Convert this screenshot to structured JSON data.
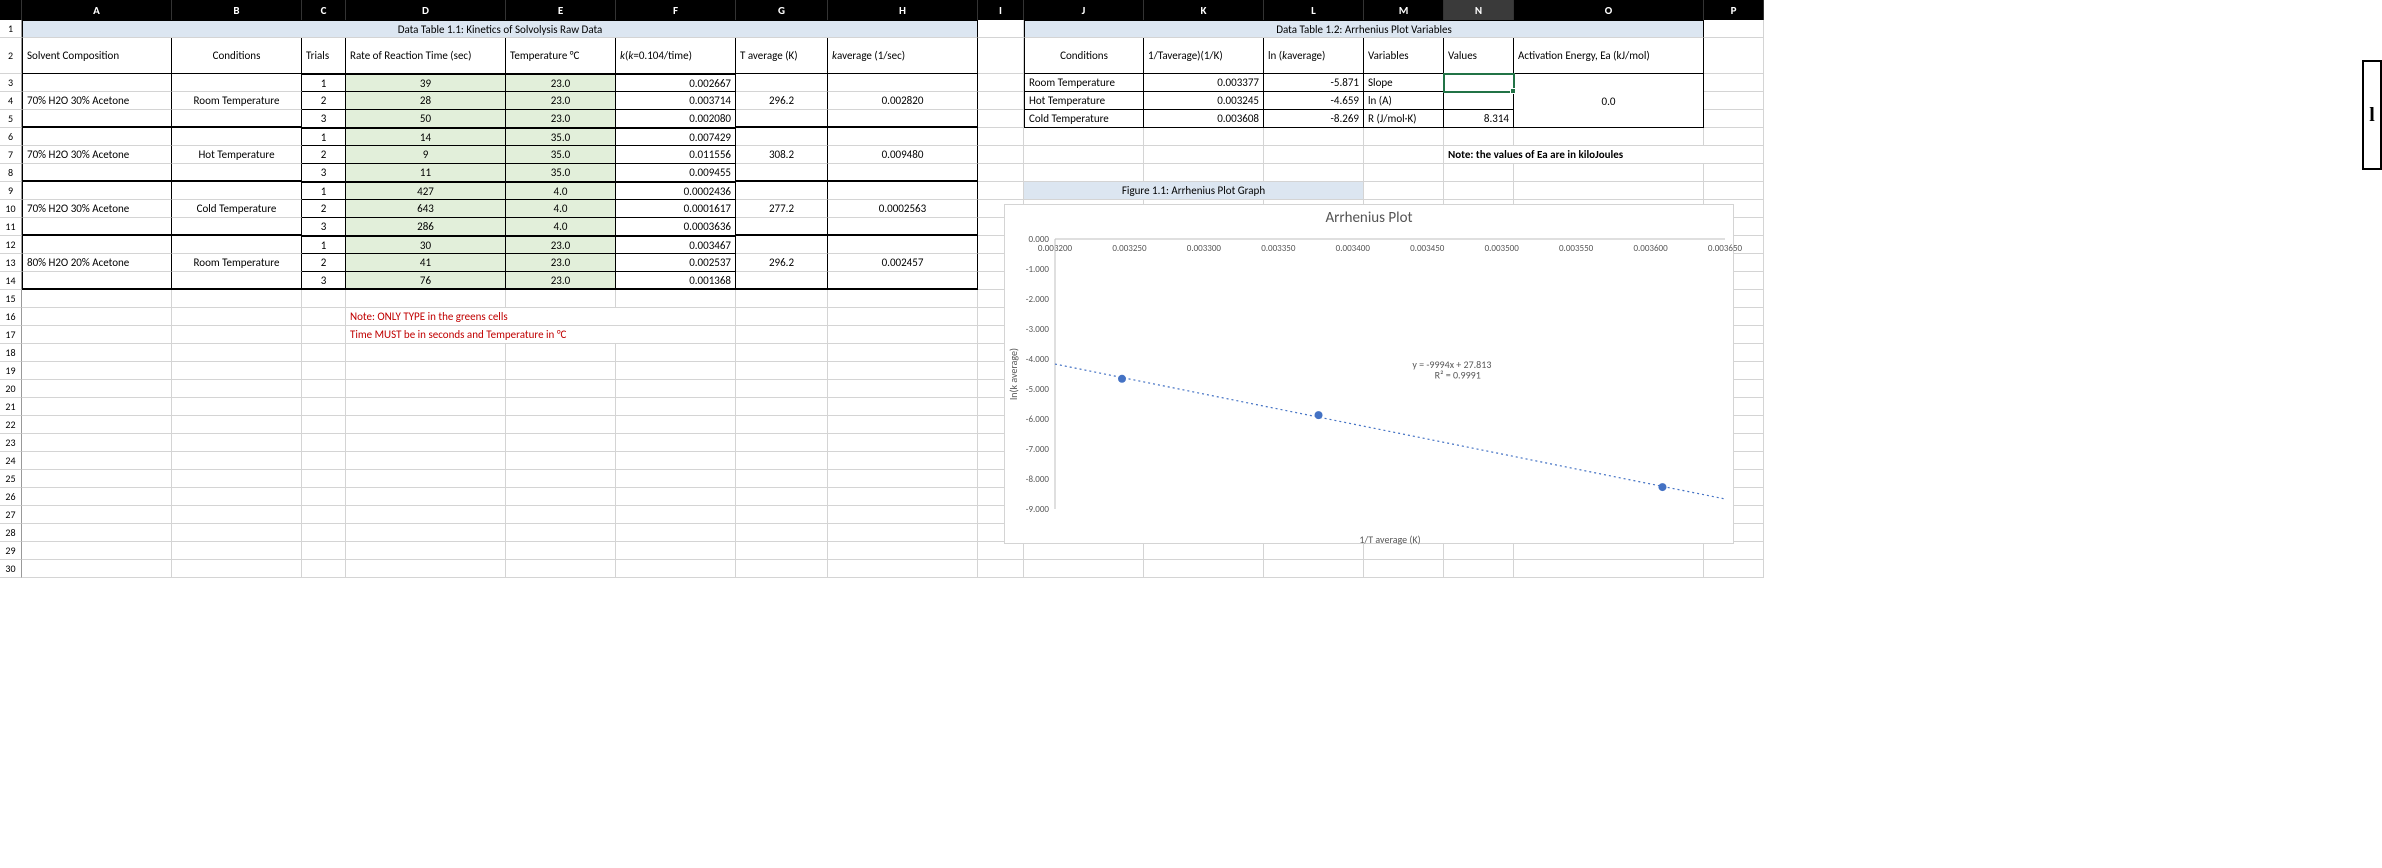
{
  "columns": [
    {
      "l": "A",
      "w": 150
    },
    {
      "l": "B",
      "w": 130
    },
    {
      "l": "C",
      "w": 44
    },
    {
      "l": "D",
      "w": 160
    },
    {
      "l": "E",
      "w": 110
    },
    {
      "l": "F",
      "w": 120
    },
    {
      "l": "G",
      "w": 92
    },
    {
      "l": "H",
      "w": 150
    },
    {
      "l": "I",
      "w": 46
    },
    {
      "l": "J",
      "w": 120
    },
    {
      "l": "K",
      "w": 120
    },
    {
      "l": "L",
      "w": 100
    },
    {
      "l": "M",
      "w": 80
    },
    {
      "l": "N",
      "w": 70
    },
    {
      "l": "O",
      "w": 190
    },
    {
      "l": "P",
      "w": 60
    }
  ],
  "row_heights": {
    "default": 18,
    "r2": 36
  },
  "selected_col": "N",
  "table1": {
    "title": "Data Table 1.1: Kinetics of Solvolysis Raw Data",
    "headers": [
      "Solvent Composition",
      "Conditions",
      "Trials",
      "Rate of Reaction Time (sec)",
      "Temperature °C",
      "k (k=0.104/time)",
      "T average (K)",
      "k average (1/sec)"
    ],
    "groups": [
      {
        "solvent": "70% H2O 30% Acetone",
        "cond": "Room Temperature",
        "tavg": "296.2",
        "kavg": "0.002820",
        "trials": [
          {
            "n": "1",
            "t": "39",
            "temp": "23.0",
            "k": "0.002667"
          },
          {
            "n": "2",
            "t": "28",
            "temp": "23.0",
            "k": "0.003714"
          },
          {
            "n": "3",
            "t": "50",
            "temp": "23.0",
            "k": "0.002080"
          }
        ]
      },
      {
        "solvent": "70% H2O 30% Acetone",
        "cond": "Hot Temperature",
        "tavg": "308.2",
        "kavg": "0.009480",
        "trials": [
          {
            "n": "1",
            "t": "14",
            "temp": "35.0",
            "k": "0.007429"
          },
          {
            "n": "2",
            "t": "9",
            "temp": "35.0",
            "k": "0.011556"
          },
          {
            "n": "3",
            "t": "11",
            "temp": "35.0",
            "k": "0.009455"
          }
        ]
      },
      {
        "solvent": "70% H2O 30% Acetone",
        "cond": "Cold Temperature",
        "tavg": "277.2",
        "kavg": "0.0002563",
        "trials": [
          {
            "n": "1",
            "t": "427",
            "temp": "4.0",
            "k": "0.0002436"
          },
          {
            "n": "2",
            "t": "643",
            "temp": "4.0",
            "k": "0.0001617"
          },
          {
            "n": "3",
            "t": "286",
            "temp": "4.0",
            "k": "0.0003636"
          }
        ]
      },
      {
        "solvent": "80% H2O 20% Acetone",
        "cond": "Room Temperature",
        "tavg": "296.2",
        "kavg": "0.002457",
        "trials": [
          {
            "n": "1",
            "t": "30",
            "temp": "23.0",
            "k": "0.003467"
          },
          {
            "n": "2",
            "t": "41",
            "temp": "23.0",
            "k": "0.002537"
          },
          {
            "n": "3",
            "t": "76",
            "temp": "23.0",
            "k": "0.001368"
          }
        ]
      }
    ],
    "notes": [
      "Note: ONLY TYPE in the greens cells",
      "Time MUST be in seconds and Temperature in °C"
    ]
  },
  "table2": {
    "title": "Data Table 1.2: Arrhenius Plot Variables",
    "headers": [
      "Conditions",
      "1/Taverage)(1/K)",
      "ln (k average)",
      "Variables",
      "Values",
      "Activation Energy, Ea (kJ/mol)"
    ],
    "rows": [
      {
        "cond": "Room Temperature",
        "invT": "0.003377",
        "lnk": "-5.871",
        "var": "Slope",
        "val": "",
        "ea": ""
      },
      {
        "cond": "Hot Temperature",
        "invT": "0.003245",
        "lnk": "-4.659",
        "var": "ln (A)",
        "val": "",
        "ea": "0.0"
      },
      {
        "cond": "Cold Temperature",
        "invT": "0.003608",
        "lnk": "-8.269",
        "var": "R  (J/mol·K)",
        "val": "8.314",
        "ea": ""
      }
    ],
    "note": "Note: the values of Ea are in kiloJoules"
  },
  "chart": {
    "heading": "Figure 1.1: Arrhenius Plot Graph",
    "title": "Arrhenius Plot",
    "xlabel": "1/T average (K)",
    "ylabel": "ln(k average)",
    "equation": "y = -9994x + 27.813",
    "r2": "R² = 0.9991",
    "xlim": [
      0.0032,
      0.00365
    ],
    "ylim": [
      -9.0,
      0.0
    ],
    "xticks": [
      "0.003200",
      "0.003250",
      "0.003300",
      "0.003350",
      "0.003400",
      "0.003450",
      "0.003500",
      "0.003550",
      "0.003600",
      "0.003650"
    ],
    "yticks": [
      "0.000",
      "-1.000",
      "-2.000",
      "-3.000",
      "-4.000",
      "-5.000",
      "-6.000",
      "-7.000",
      "-8.000",
      "-9.000"
    ],
    "points": [
      {
        "x": 0.003245,
        "y": -4.659
      },
      {
        "x": 0.003377,
        "y": -5.871
      },
      {
        "x": 0.003608,
        "y": -8.269
      }
    ],
    "marker_color": "#4472c4",
    "line_color": "#4472c4",
    "line_dash": "2,3",
    "background": "#ffffff",
    "text_color": "#595959",
    "font_size_axis": 9,
    "font_size_title": 15
  },
  "active_cell": "N3",
  "side_glyph": "l"
}
